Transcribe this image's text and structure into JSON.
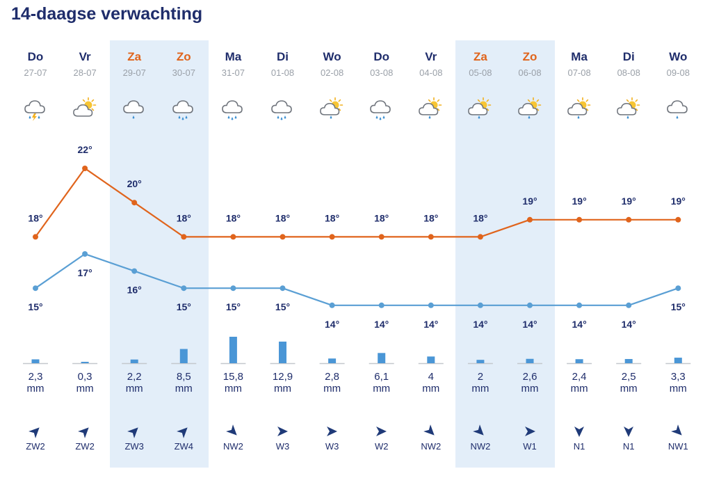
{
  "title": "14-daagse verwachting",
  "colors": {
    "max_line": "#e0641c",
    "min_line": "#5a9fd4",
    "precip_bar": "#4a96d6",
    "weekend_band": "#e3eef9",
    "weekend_text": "#e0641c"
  },
  "days": [
    {
      "day": "Do",
      "date": "27-07",
      "weekend": false,
      "icon": "cloud-thunder-rain-icon",
      "precip": "2,3",
      "wind": "ZW2",
      "wind_icon": "arrow-northeast-icon"
    },
    {
      "day": "Vr",
      "date": "28-07",
      "weekend": false,
      "icon": "cloud-sun-icon",
      "precip": "0,3",
      "wind": "ZW2",
      "wind_icon": "arrow-northeast-icon"
    },
    {
      "day": "Za",
      "date": "29-07",
      "weekend": true,
      "icon": "cloud-drizzle-icon",
      "precip": "2,2",
      "wind": "ZW3",
      "wind_icon": "arrow-northeast-icon"
    },
    {
      "day": "Zo",
      "date": "30-07",
      "weekend": true,
      "icon": "cloud-heavy-rain-icon",
      "precip": "8,5",
      "wind": "ZW4",
      "wind_icon": "arrow-northeast-icon"
    },
    {
      "day": "Ma",
      "date": "31-07",
      "weekend": false,
      "icon": "cloud-heavy-rain-icon",
      "precip": "15,8",
      "wind": "NW2",
      "wind_icon": "arrow-southeast-icon"
    },
    {
      "day": "Di",
      "date": "01-08",
      "weekend": false,
      "icon": "cloud-heavy-rain-icon",
      "precip": "12,9",
      "wind": "W3",
      "wind_icon": "arrow-east-icon"
    },
    {
      "day": "Wo",
      "date": "02-08",
      "weekend": false,
      "icon": "sun-cloud-rain-icon",
      "precip": "2,8",
      "wind": "W3",
      "wind_icon": "arrow-east-icon"
    },
    {
      "day": "Do",
      "date": "03-08",
      "weekend": false,
      "icon": "cloud-heavy-rain-icon",
      "precip": "6,1",
      "wind": "W2",
      "wind_icon": "arrow-east-icon"
    },
    {
      "day": "Vr",
      "date": "04-08",
      "weekend": false,
      "icon": "sun-cloud-rain-icon",
      "precip": "4",
      "wind": "NW2",
      "wind_icon": "arrow-southeast-icon"
    },
    {
      "day": "Za",
      "date": "05-08",
      "weekend": true,
      "icon": "sun-cloud-rain-icon",
      "precip": "2",
      "wind": "NW2",
      "wind_icon": "arrow-southeast-icon"
    },
    {
      "day": "Zo",
      "date": "06-08",
      "weekend": true,
      "icon": "sun-cloud-rain-icon",
      "precip": "2,6",
      "wind": "W1",
      "wind_icon": "arrow-east-icon"
    },
    {
      "day": "Ma",
      "date": "07-08",
      "weekend": false,
      "icon": "sun-cloud-rain-icon",
      "precip": "2,4",
      "wind": "N1",
      "wind_icon": "arrow-south-icon"
    },
    {
      "day": "Di",
      "date": "08-08",
      "weekend": false,
      "icon": "sun-cloud-rain-icon",
      "precip": "2,5",
      "wind": "N1",
      "wind_icon": "arrow-south-icon"
    },
    {
      "day": "Wo",
      "date": "09-08",
      "weekend": false,
      "icon": "cloud-drizzle-icon",
      "precip": "3,3",
      "wind": "NW1",
      "wind_icon": "arrow-southeast-icon"
    }
  ],
  "precip_unit": "mm",
  "chart_data": {
    "type": "line",
    "categories": [
      "27-07",
      "28-07",
      "29-07",
      "30-07",
      "31-07",
      "01-08",
      "02-08",
      "03-08",
      "04-08",
      "05-08",
      "06-08",
      "07-08",
      "08-08",
      "09-08"
    ],
    "series": [
      {
        "values": [
          18,
          22,
          20,
          18,
          18,
          18,
          18,
          18,
          18,
          18,
          19,
          19,
          19,
          19
        ],
        "color": "#e0641c"
      },
      {
        "values": [
          15,
          17,
          16,
          15,
          15,
          15,
          14,
          14,
          14,
          14,
          14,
          14,
          14,
          15
        ],
        "color": "#5a9fd4"
      }
    ],
    "temp_suffix": "°",
    "precip_values": [
      2.3,
      0.3,
      2.2,
      8.5,
      15.8,
      12.9,
      2.8,
      6.1,
      4,
      2,
      2.6,
      2.4,
      2.5,
      3.3
    ],
    "ylim": [
      13,
      23
    ],
    "grid": false,
    "legend": "none"
  }
}
